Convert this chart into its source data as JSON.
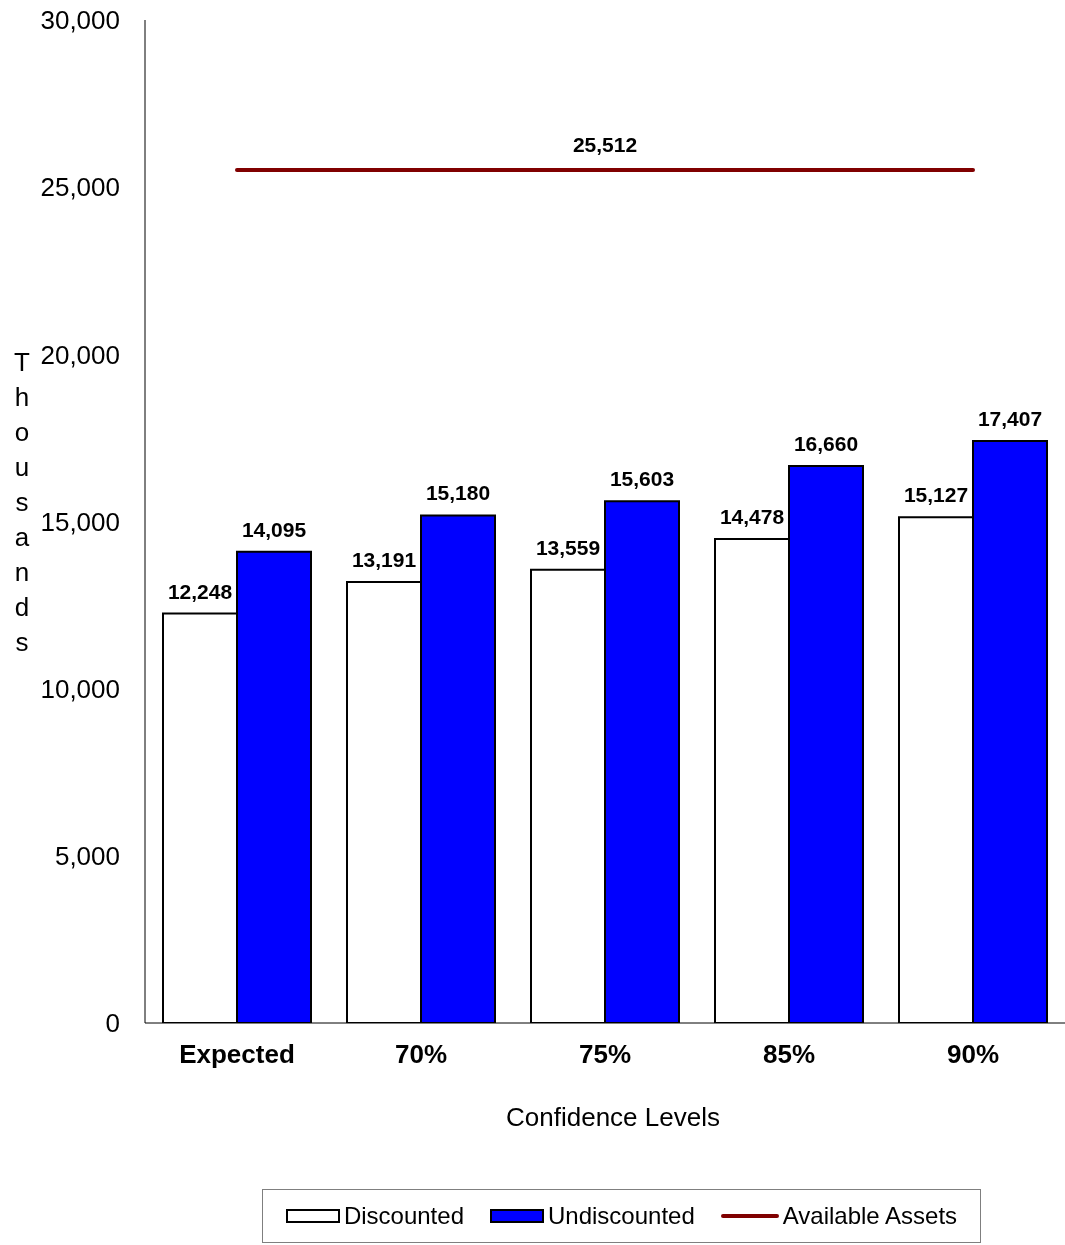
{
  "chart_data": {
    "type": "bar",
    "xlabel": "Confidence Levels",
    "ylabel": "Thousands",
    "categories": [
      "Expected",
      "70%",
      "75%",
      "85%",
      "90%"
    ],
    "series": [
      {
        "name": "Discounted",
        "color": "#ffffff",
        "values": [
          12248,
          13191,
          13559,
          14478,
          15127
        ],
        "value_labels": [
          "12,248",
          "13,191",
          "13,559",
          "14,478",
          "15,127"
        ]
      },
      {
        "name": "Undiscounted",
        "color": "#0000ff",
        "values": [
          14095,
          15180,
          15603,
          16660,
          17407
        ],
        "value_labels": [
          "14,095",
          "15,180",
          "15,603",
          "16,660",
          "17,407"
        ]
      },
      {
        "name": "Available Assets",
        "type": "line",
        "color": "#800000",
        "values": [
          25512,
          25512,
          25512,
          25512,
          25512
        ],
        "value_labels": [
          null,
          null,
          "25,512",
          null,
          null
        ]
      }
    ],
    "ylim": [
      0,
      30000
    ],
    "yticks": [
      0,
      {
        "value": 5000,
        "label": "5,000"
      },
      {
        "value": 10000,
        "label": "10,000"
      },
      {
        "value": 15000,
        "label": "15,000"
      },
      {
        "value": 20000,
        "label": "20,000"
      },
      {
        "value": 25000,
        "label": "25,000"
      },
      {
        "value": 30000,
        "label": "30,000"
      }
    ],
    "grid": false,
    "legend": "bottom",
    "marker": "none"
  }
}
